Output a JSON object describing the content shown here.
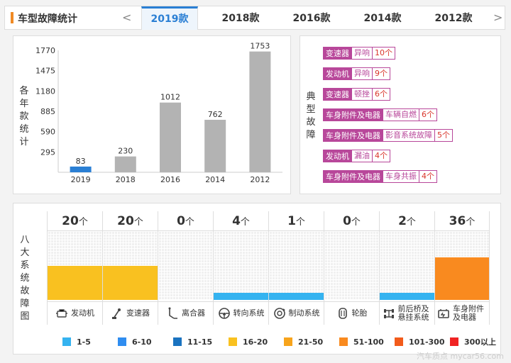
{
  "header": {
    "title": "车型故障统计",
    "prev": "<",
    "next": ">",
    "tabs": [
      "2019款",
      "2018款",
      "2016款",
      "2014款",
      "2012款"
    ],
    "active_tab": 0
  },
  "chart_data": {
    "type": "bar",
    "ylabel": "各年款统计",
    "categories": [
      "2019",
      "2018",
      "2016",
      "2014",
      "2012"
    ],
    "values": [
      83,
      230,
      1012,
      762,
      1753
    ],
    "yticks": [
      295,
      590,
      885,
      1180,
      1475,
      1770
    ],
    "ylim": [
      0,
      1770
    ],
    "colors": {
      "active": "#2a7fd4",
      "default": "#b3b3b3"
    }
  },
  "faults": {
    "label": "典型故障",
    "items": [
      {
        "part": "变速器",
        "issue": "异响",
        "count": "10个"
      },
      {
        "part": "发动机",
        "issue": "异响",
        "count": "9个"
      },
      {
        "part": "变速器",
        "issue": "顿挫",
        "count": "6个"
      },
      {
        "part": "车身附件及电器",
        "issue": "车辆自燃",
        "count": "6个"
      },
      {
        "part": "车身附件及电器",
        "issue": "影音系统故障",
        "count": "5个"
      },
      {
        "part": "发动机",
        "issue": "漏油",
        "count": "4个"
      },
      {
        "part": "车身附件及电器",
        "issue": "车身共振",
        "count": "4个"
      }
    ]
  },
  "systems": {
    "label": "八大系统故障图",
    "unit": "个",
    "items": [
      {
        "name": "发动机",
        "count": "20",
        "level": 0.5,
        "color": "#f9c120",
        "icon": "engine-icon"
      },
      {
        "name": "变速器",
        "count": "20",
        "level": 0.5,
        "color": "#f9c120",
        "icon": "gear-shift-icon"
      },
      {
        "name": "离合器",
        "count": "0",
        "level": 0,
        "color": "#f9c120",
        "icon": "clutch-pedal-icon"
      },
      {
        "name": "转向系统",
        "count": "4",
        "level": 0.1,
        "color": "#35b3f0",
        "icon": "steering-wheel-icon"
      },
      {
        "name": "制动系统",
        "count": "1",
        "level": 0.1,
        "color": "#35b3f0",
        "icon": "brake-disc-icon"
      },
      {
        "name": "轮胎",
        "count": "0",
        "level": 0,
        "color": "#35b3f0",
        "icon": "tire-icon"
      },
      {
        "name": "前后桥及悬挂系统",
        "count": "2",
        "level": 0.1,
        "color": "#35b3f0",
        "icon": "axle-icon"
      },
      {
        "name": "车身附件及电器",
        "count": "36",
        "level": 0.62,
        "color": "#f98a1f",
        "icon": "battery-icon"
      }
    ]
  },
  "legend": [
    {
      "label": "1-5",
      "color": "#35b3f0"
    },
    {
      "label": "6-10",
      "color": "#2f8df0"
    },
    {
      "label": "11-15",
      "color": "#1a73c0"
    },
    {
      "label": "16-20",
      "color": "#f9c120"
    },
    {
      "label": "21-50",
      "color": "#f7a41c"
    },
    {
      "label": "51-100",
      "color": "#f98a1f"
    },
    {
      "label": "101-300",
      "color": "#f25b1b"
    },
    {
      "label": "300以上",
      "color": "#f02323"
    }
  ],
  "watermark": "汽车质点  mycar56.com"
}
